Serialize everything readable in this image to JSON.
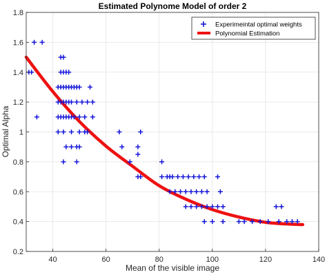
{
  "chart_data": {
    "type": "scatter",
    "title": "Estimated Polynome Model of order 2",
    "xlabel": "Mean of the visible image",
    "ylabel": "Optimal Alpha",
    "xlim": [
      30,
      140
    ],
    "ylim": [
      0.2,
      1.8
    ],
    "xticks": [
      40,
      60,
      80,
      100,
      120,
      140
    ],
    "yticks": [
      0.2,
      0.4,
      0.6,
      0.8,
      1,
      1.2,
      1.4,
      1.6,
      1.8
    ],
    "grid": true,
    "legend_position": "top-right",
    "colors": {
      "series_points": "#1515d8",
      "series_curve": "#ee1111",
      "grid": "#e3e3e3",
      "axes": "#262626"
    },
    "series": [
      {
        "name": "Experimeintal optimal weights",
        "type": "scatter",
        "marker": "plus",
        "points": [
          [
            33,
            1.6
          ],
          [
            36,
            1.6
          ],
          [
            31,
            1.4
          ],
          [
            32,
            1.4
          ],
          [
            34,
            1.1
          ],
          [
            43,
            1.5
          ],
          [
            44,
            1.5
          ],
          [
            43,
            1.4
          ],
          [
            44,
            1.4
          ],
          [
            45,
            1.4
          ],
          [
            46,
            1.4
          ],
          [
            42,
            1.3
          ],
          [
            43,
            1.3
          ],
          [
            44,
            1.3
          ],
          [
            45,
            1.3
          ],
          [
            46,
            1.3
          ],
          [
            47,
            1.3
          ],
          [
            48,
            1.3
          ],
          [
            49,
            1.3
          ],
          [
            50,
            1.3
          ],
          [
            54,
            1.3
          ],
          [
            42,
            1.2
          ],
          [
            43,
            1.2
          ],
          [
            44,
            1.2
          ],
          [
            45,
            1.2
          ],
          [
            46,
            1.2
          ],
          [
            47,
            1.2
          ],
          [
            49,
            1.2
          ],
          [
            51,
            1.2
          ],
          [
            53,
            1.2
          ],
          [
            55,
            1.2
          ],
          [
            42,
            1.1
          ],
          [
            43,
            1.1
          ],
          [
            44,
            1.1
          ],
          [
            45,
            1.1
          ],
          [
            46,
            1.1
          ],
          [
            47,
            1.1
          ],
          [
            48,
            1.1
          ],
          [
            50,
            1.1
          ],
          [
            52,
            1.1
          ],
          [
            55,
            1.1
          ],
          [
            42,
            1.0
          ],
          [
            44,
            1.0
          ],
          [
            47,
            1.0
          ],
          [
            50,
            1.0
          ],
          [
            52,
            1.0
          ],
          [
            53,
            1.0
          ],
          [
            45,
            0.9
          ],
          [
            47,
            0.9
          ],
          [
            49,
            0.9
          ],
          [
            50,
            0.9
          ],
          [
            44,
            0.8
          ],
          [
            49,
            0.8
          ],
          [
            65,
            1.0
          ],
          [
            73,
            1.0
          ],
          [
            72,
            0.9
          ],
          [
            66,
            0.9
          ],
          [
            72,
            0.85
          ],
          [
            69,
            0.8
          ],
          [
            81,
            0.8
          ],
          [
            72,
            0.7
          ],
          [
            73,
            0.7
          ],
          [
            84,
            0.7
          ],
          [
            81,
            0.7
          ],
          [
            83,
            0.7
          ],
          [
            85,
            0.7
          ],
          [
            87,
            0.7
          ],
          [
            89,
            0.7
          ],
          [
            91,
            0.7
          ],
          [
            93,
            0.7
          ],
          [
            95,
            0.7
          ],
          [
            97,
            0.7
          ],
          [
            102,
            0.7
          ],
          [
            84,
            0.6
          ],
          [
            86,
            0.6
          ],
          [
            88,
            0.6
          ],
          [
            90,
            0.6
          ],
          [
            92,
            0.6
          ],
          [
            94,
            0.6
          ],
          [
            96,
            0.6
          ],
          [
            98,
            0.6
          ],
          [
            103,
            0.6
          ],
          [
            90,
            0.5
          ],
          [
            92,
            0.5
          ],
          [
            94,
            0.5
          ],
          [
            96,
            0.5
          ],
          [
            98,
            0.5
          ],
          [
            100,
            0.5
          ],
          [
            102,
            0.5
          ],
          [
            104,
            0.5
          ],
          [
            97,
            0.4
          ],
          [
            100,
            0.4
          ],
          [
            104,
            0.4
          ],
          [
            110,
            0.4
          ],
          [
            112,
            0.4
          ],
          [
            115,
            0.4
          ],
          [
            118,
            0.4
          ],
          [
            121,
            0.4
          ],
          [
            125,
            0.4
          ],
          [
            128,
            0.4
          ],
          [
            130,
            0.4
          ],
          [
            132,
            0.4
          ],
          [
            124,
            0.5
          ],
          [
            126,
            0.5
          ]
        ]
      },
      {
        "name": "Polynomial Estimation",
        "type": "line",
        "x": [
          30,
          40,
          50,
          60,
          70,
          80,
          90,
          100,
          110,
          120,
          130,
          134
        ],
        "y": [
          1.5,
          1.27,
          1.07,
          0.905,
          0.77,
          0.64,
          0.55,
          0.48,
          0.43,
          0.395,
          0.382,
          0.38
        ]
      }
    ]
  }
}
